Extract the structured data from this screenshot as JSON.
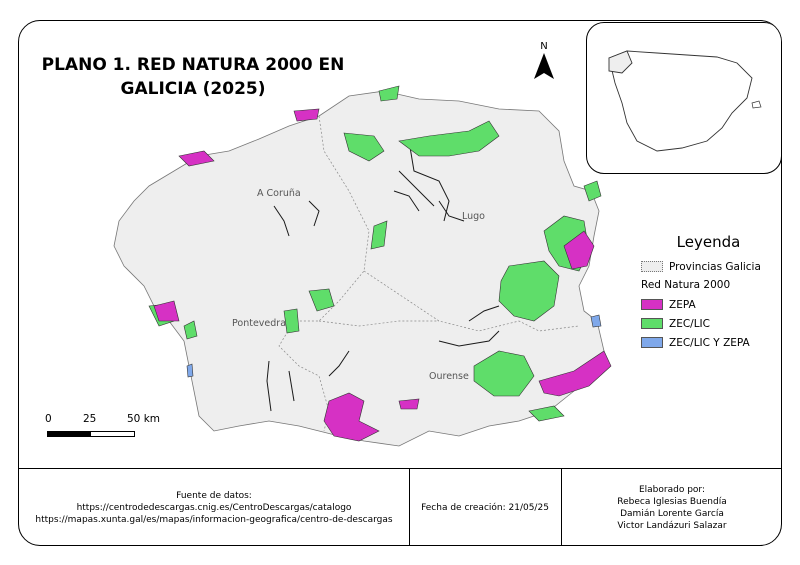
{
  "title": "PLANO 1. RED NATURA 2000 EN GALICIA (2025)",
  "north_label": "N",
  "places": {
    "coruna": "A Coruña",
    "lugo": "Lugo",
    "pontevedra": "Pontevedra",
    "ourense": "Ourense"
  },
  "legend": {
    "title": "Leyenda",
    "provinces": "Provincias Galicia",
    "subtitle": "Red Natura 2000",
    "items": [
      {
        "label": "ZEPA",
        "color": "#d631c4"
      },
      {
        "label": "ZEC/LIC",
        "color": "#5fdd6a"
      },
      {
        "label": "ZEC/LIC Y ZEPA",
        "color": "#7fa8ea"
      }
    ]
  },
  "scale": {
    "ticks": [
      "0",
      "25",
      "50 km"
    ]
  },
  "footer": {
    "sources_title": "Fuente de datos:",
    "source_1": "https://centrodedescargas.cnig.es/CentroDescargas/catalogo",
    "source_2": "https://mapas.xunta.gal/es/mapas/informacion-geografica/centro-de-descargas",
    "date": "Fecha de creación: 21/05/25",
    "authors_title": "Elaborado por:",
    "author_1": "Rebeca Iglesias Buendía",
    "author_2": "Damián Lorente García",
    "author_3": "Victor Landázuri Salazar"
  },
  "colors": {
    "land": "#eeeeee",
    "zepa": "#d631c4",
    "zec": "#5fdd6a",
    "both": "#7fa8ea",
    "river": "#1a1a1a"
  }
}
